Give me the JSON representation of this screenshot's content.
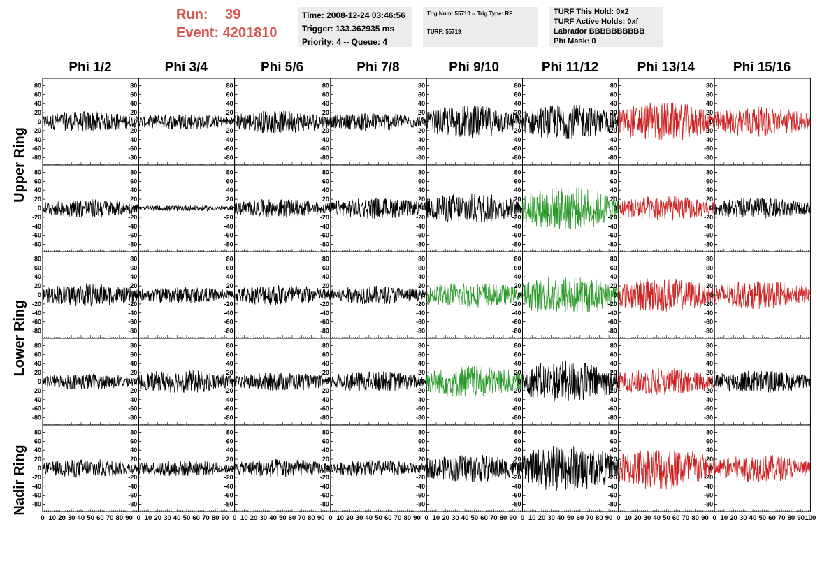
{
  "header": {
    "run_label": "Run:",
    "run_value": "39",
    "event_label": "Event:",
    "event_value": "4201810"
  },
  "time_box": {
    "time": "Time: 2008-12-24 03:46:56",
    "trigger": "Trigger: 133.362935 ms",
    "priority": "Priority: 4 -- Queue: 4"
  },
  "trig_box": {
    "trig": "Trig Num: 55710 -- Trig Type: RF",
    "turf": "TURF: 55719"
  },
  "turf_box": {
    "this_hold": "TURF This Hold: 0x2",
    "active_holds": "TURF Active Holds: 0xf",
    "labrador": "Labrador BBBBBBBBBB",
    "phi_mask": "Phi Mask: 0"
  },
  "phi_labels": [
    "Phi 1/2",
    "Phi 3/4",
    "Phi 5/6",
    "Phi 7/8",
    "Phi 9/10",
    "Phi 11/12",
    "Phi 13/14",
    "Phi 15/16"
  ],
  "ring_labels": {
    "upper": "Upper Ring",
    "lower": "Lower Ring",
    "nadir": "Nadir Ring"
  },
  "colors": {
    "run_text": "#d9534f",
    "trace_black": "#000000",
    "trace_red": "#cc2222",
    "trace_green": "#2a9a2a",
    "info_bg": "#ececec"
  },
  "axis": {
    "y_ticks": [
      80,
      60,
      40,
      20,
      0,
      -20,
      -40,
      -60,
      -80
    ],
    "y_tick_labels": [
      "80",
      "60",
      "40",
      "20",
      "0",
      "-20",
      "-40",
      "-60",
      "-80"
    ],
    "y_range": [
      -90,
      90
    ],
    "x_ticks": [
      0,
      10,
      20,
      30,
      40,
      50,
      60,
      70,
      80,
      90,
      100
    ],
    "x_tick_labels": [
      "0",
      "10",
      "20",
      "30",
      "40",
      "50",
      "60",
      "70",
      "80",
      "90",
      "100"
    ],
    "x_range": [
      0,
      100
    ]
  },
  "chart_data": {
    "type": "line",
    "rows": 5,
    "cols": 8,
    "trace_colors": [
      [
        "black",
        "black",
        "black",
        "black",
        "black",
        "black",
        "red",
        "red"
      ],
      [
        "black",
        "black",
        "black",
        "black",
        "black",
        "green",
        "red",
        "black"
      ],
      [
        "black",
        "black",
        "black",
        "black",
        "green",
        "green",
        "red",
        "red"
      ],
      [
        "black",
        "black",
        "black",
        "black",
        "green",
        "black",
        "red",
        "black"
      ],
      [
        "black",
        "black",
        "black",
        "black",
        "black",
        "black",
        "red",
        "red"
      ]
    ],
    "amplitudes": [
      [
        18,
        14,
        20,
        16,
        28,
        30,
        34,
        26
      ],
      [
        16,
        5,
        16,
        18,
        26,
        38,
        22,
        18
      ],
      [
        20,
        14,
        18,
        16,
        22,
        34,
        30,
        24
      ],
      [
        14,
        20,
        16,
        18,
        28,
        36,
        24,
        20
      ],
      [
        16,
        14,
        16,
        14,
        24,
        40,
        38,
        24
      ]
    ],
    "ylim": [
      -90,
      90
    ],
    "xlim": [
      0,
      100
    ]
  }
}
